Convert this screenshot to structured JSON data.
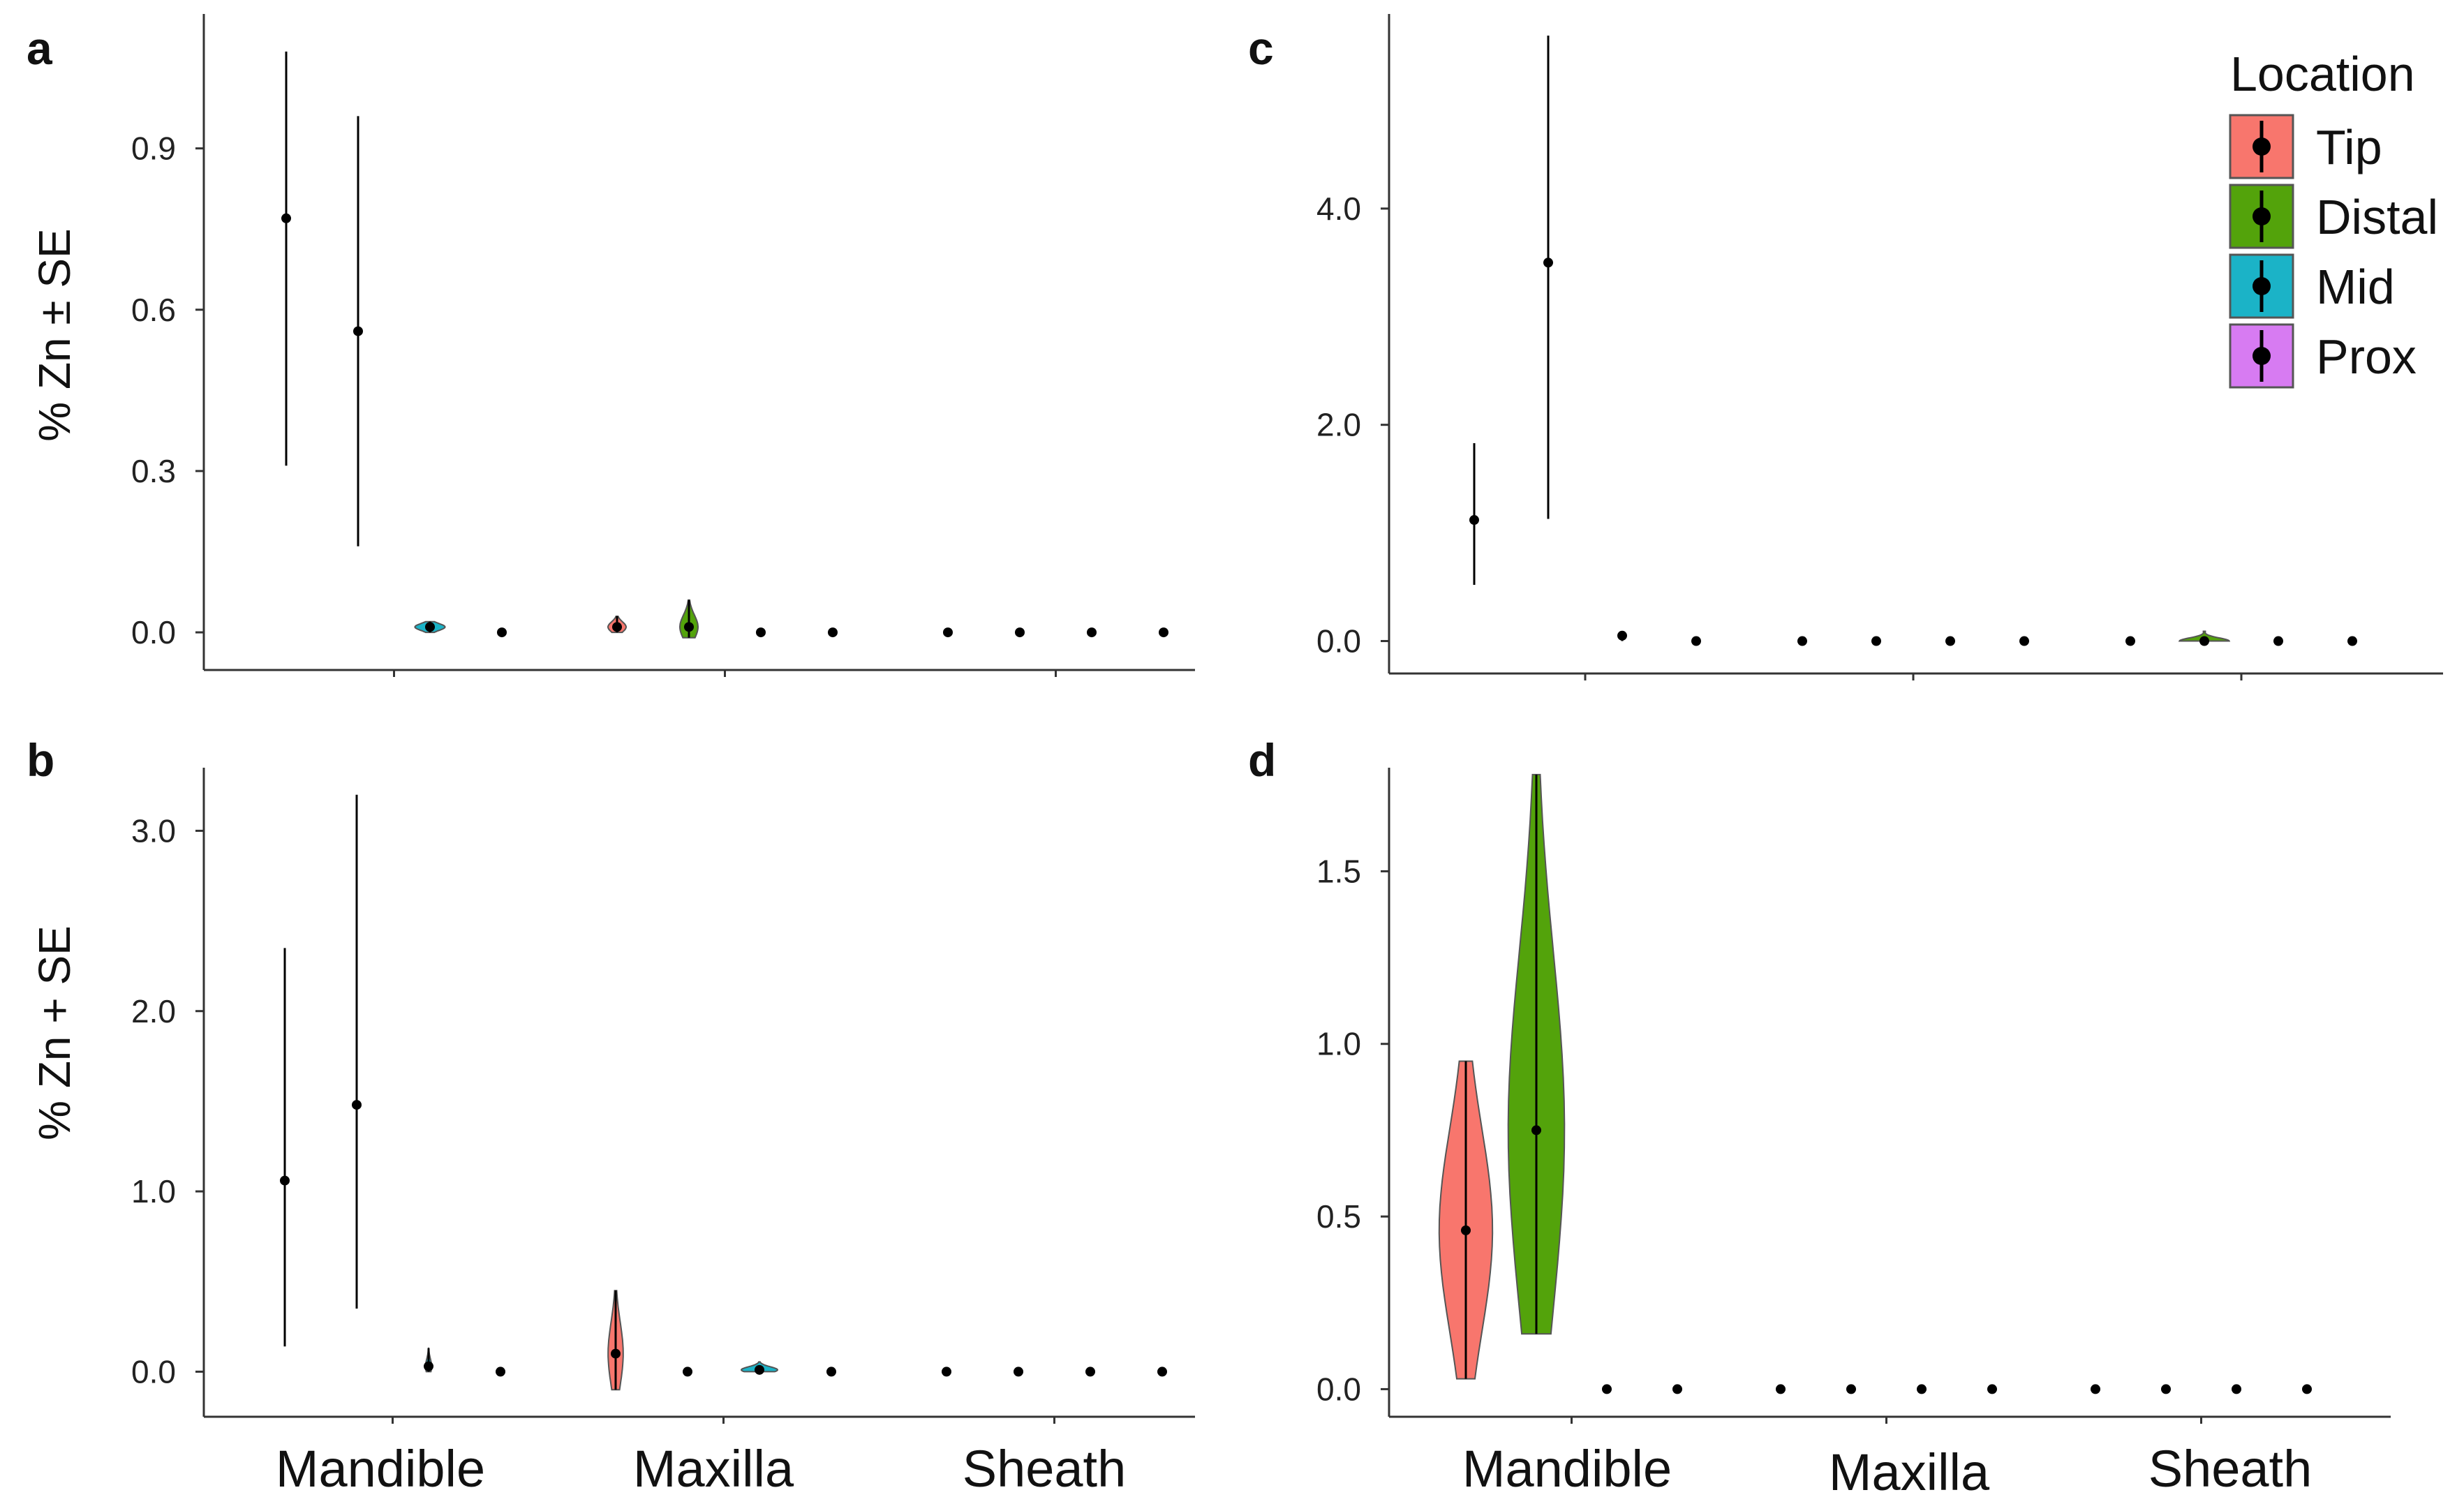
{
  "legend": {
    "title": "Location",
    "items": [
      {
        "label": "Tip",
        "color": "#F8766D"
      },
      {
        "label": "Distal",
        "color": "#53A30B"
      },
      {
        "label": "Mid",
        "color": "#1BB3C7"
      },
      {
        "label": "Prox",
        "color": "#D77BF2"
      }
    ]
  },
  "x_labels": [
    "Mandible",
    "Maxilla",
    "Sheath"
  ],
  "chart_data": [
    {
      "panel": "a",
      "type": "violin",
      "ylabel": "% Zn ± SE",
      "ylim": [
        -0.07,
        1.15
      ],
      "yticks": [
        0.0,
        0.3,
        0.6,
        0.9
      ],
      "ytick_labels": [
        "0.0",
        "0.3",
        "0.6",
        "0.9"
      ],
      "categories": [
        "Mandible",
        "Maxilla",
        "Sheath"
      ],
      "series": [
        {
          "name": "Tip",
          "values": [
            0.77,
            0.01,
            0.0
          ],
          "lo": [
            0.31,
            0.0,
            0.0
          ],
          "hi": [
            1.08,
            0.03,
            0.0
          ],
          "violin_width": [
            0,
            0.3,
            0
          ]
        },
        {
          "name": "Distal",
          "values": [
            0.56,
            0.01,
            0.0
          ],
          "lo": [
            0.16,
            -0.01,
            0.0
          ],
          "hi": [
            0.96,
            0.06,
            0.0
          ],
          "violin_width": [
            0,
            0.3,
            0
          ]
        },
        {
          "name": "Mid",
          "values": [
            0.01,
            0.0,
            0.0
          ],
          "lo": [
            0.0,
            0.0,
            0.0
          ],
          "hi": [
            0.02,
            0.0,
            0.0
          ],
          "violin_width": [
            0.5,
            0,
            0
          ]
        },
        {
          "name": "Prox",
          "values": [
            0.0,
            0.0,
            0.0
          ],
          "lo": [
            0.0,
            0.0,
            0.0
          ],
          "hi": [
            0.0,
            0.0,
            0.0
          ],
          "violin_width": [
            0,
            0,
            0
          ]
        }
      ]
    },
    {
      "panel": "b",
      "type": "violin",
      "ylabel": "% Zn + SE",
      "ylim": [
        -0.25,
        3.35
      ],
      "yticks": [
        0.0,
        1.0,
        2.0,
        3.0
      ],
      "ytick_labels": [
        "0.0",
        "1.0",
        "2.0",
        "3.0"
      ],
      "categories": [
        "Mandible",
        "Maxilla",
        "Sheath"
      ],
      "series": [
        {
          "name": "Tip",
          "values": [
            1.06,
            0.1,
            0.0
          ],
          "lo": [
            0.14,
            -0.1,
            0.0
          ],
          "hi": [
            2.35,
            0.45,
            0.0
          ],
          "violin_width": [
            0,
            0.25,
            0
          ]
        },
        {
          "name": "Distal",
          "values": [
            1.48,
            0.0,
            0.0
          ],
          "lo": [
            0.35,
            0.0,
            0.0
          ],
          "hi": [
            3.2,
            0.0,
            0.0
          ],
          "violin_width": [
            0,
            0,
            0
          ]
        },
        {
          "name": "Mid",
          "values": [
            0.03,
            0.01,
            0.0
          ],
          "lo": [
            0.0,
            0.0,
            0.0
          ],
          "hi": [
            0.13,
            0.02,
            0.0
          ],
          "violin_width": [
            0.1,
            0.6,
            0
          ]
        },
        {
          "name": "Prox",
          "values": [
            0.0,
            0.0,
            0.0
          ],
          "lo": [
            0.0,
            0.0,
            0.0
          ],
          "hi": [
            0.0,
            0.0,
            0.0
          ],
          "violin_width": [
            0,
            0,
            0
          ]
        }
      ]
    },
    {
      "panel": "c",
      "type": "violin",
      "ylabel": "",
      "ylim": [
        -0.3,
        5.8
      ],
      "yticks": [
        0.0,
        2.0,
        4.0
      ],
      "ytick_labels": [
        "0.0",
        "2.0",
        "4.0"
      ],
      "categories": [
        "Mandible",
        "Maxilla",
        "Sheath"
      ],
      "series": [
        {
          "name": "Tip",
          "values": [
            1.12,
            0.0,
            0.0
          ],
          "lo": [
            0.52,
            0.0,
            0.0
          ],
          "hi": [
            1.83,
            0.0,
            0.0
          ],
          "violin_width": [
            0,
            0,
            0
          ]
        },
        {
          "name": "Distal",
          "values": [
            3.5,
            0.0,
            0.0
          ],
          "lo": [
            1.13,
            0.0,
            0.0
          ],
          "hi": [
            5.6,
            0.0,
            0.0
          ],
          "violin_width": [
            0,
            0,
            0.8
          ]
        },
        {
          "name": "Mid",
          "values": [
            0.05,
            0.0,
            0.0
          ],
          "lo": [
            0.0,
            0.0,
            0.0
          ],
          "hi": [
            0.08,
            0.0,
            0.0
          ],
          "violin_width": [
            0,
            0,
            0
          ]
        },
        {
          "name": "Prox",
          "values": [
            0.0,
            0.0,
            0.0
          ],
          "lo": [
            0.0,
            0.0,
            0.0
          ],
          "hi": [
            0.0,
            0.0,
            0.0
          ],
          "violin_width": [
            0,
            0,
            0
          ]
        }
      ]
    },
    {
      "panel": "d",
      "type": "violin",
      "ylabel": "",
      "ylim": [
        -0.08,
        1.8
      ],
      "yticks": [
        0.0,
        0.5,
        1.0,
        1.5
      ],
      "ytick_labels": [
        "0.0",
        "0.5",
        "1.0",
        "1.5"
      ],
      "categories": [
        "Mandible",
        "Maxilla",
        "Sheath"
      ],
      "series": [
        {
          "name": "Tip",
          "values": [
            0.46,
            0.0,
            0.0
          ],
          "lo": [
            0.03,
            0.0,
            0.0
          ],
          "hi": [
            0.95,
            0.0,
            0.0
          ],
          "violin_width": [
            0.9,
            0,
            0
          ]
        },
        {
          "name": "Distal",
          "values": [
            0.75,
            0.0,
            0.0
          ],
          "lo": [
            0.16,
            0.0,
            0.0
          ],
          "hi": [
            1.78,
            0.0,
            0.0
          ],
          "violin_width": [
            0.95,
            0,
            0
          ]
        },
        {
          "name": "Mid",
          "values": [
            0.0,
            0.0,
            0.0
          ],
          "lo": [
            0.0,
            0.0,
            0.0
          ],
          "hi": [
            0.0,
            0.0,
            0.0
          ],
          "violin_width": [
            0,
            0,
            0
          ]
        },
        {
          "name": "Prox",
          "values": [
            0.0,
            0.0,
            0.0
          ],
          "lo": [
            0.0,
            0.0,
            0.0
          ],
          "hi": [
            0.0,
            0.0,
            0.0
          ],
          "violin_width": [
            0,
            0,
            0
          ]
        }
      ]
    }
  ]
}
